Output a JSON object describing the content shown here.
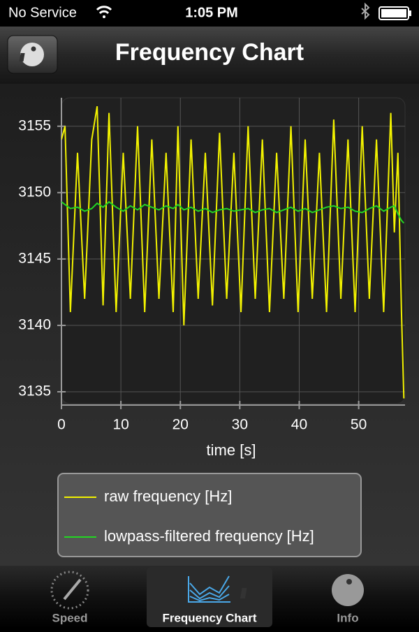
{
  "status": {
    "carrier": "No Service",
    "time": "1:05 PM"
  },
  "nav": {
    "title": "Frequency Chart"
  },
  "tabs": [
    "Speed",
    "Frequency Chart",
    "Info"
  ],
  "chart_data": {
    "type": "line",
    "xlabel": "time [s]",
    "x": [
      0,
      0.6,
      1.5,
      2.7,
      3.9,
      5.1,
      6.0,
      7.0,
      8.0,
      9.2,
      10.4,
      11.6,
      12.8,
      14.0,
      15.2,
      16.4,
      17.6,
      18.8,
      19.6,
      20.6,
      21.8,
      23.0,
      24.2,
      25.4,
      26.6,
      27.8,
      29.0,
      30.2,
      31.4,
      32.6,
      33.8,
      35.0,
      36.2,
      37.4,
      38.6,
      39.8,
      41.0,
      42.2,
      43.4,
      44.6,
      45.8,
      47.0,
      48.2,
      49.4,
      50.6,
      51.8,
      53.0,
      54.2,
      55.4,
      56.0,
      56.6,
      57.2,
      57.6
    ],
    "series": [
      {
        "name": "raw frequency [Hz]",
        "color": "#f2f200",
        "values": [
          3154,
          3155,
          3141,
          3153,
          3142,
          3154,
          3156.5,
          3141.5,
          3156,
          3141,
          3153,
          3142,
          3155,
          3141,
          3154,
          3142,
          3153,
          3141,
          3155,
          3140,
          3154,
          3142,
          3153,
          3141.5,
          3154.5,
          3142,
          3153,
          3141,
          3155,
          3142,
          3154,
          3141,
          3153,
          3142,
          3155,
          3141,
          3154,
          3142,
          3153,
          3141,
          3155.5,
          3142,
          3154,
          3141,
          3155,
          3142,
          3154,
          3141,
          3156,
          3147,
          3153,
          3141,
          3134.5
        ]
      },
      {
        "name": "lowpass-filtered frequency [Hz]",
        "color": "#22d622",
        "values": [
          3149.3,
          3149.1,
          3148.8,
          3148.9,
          3148.6,
          3148.8,
          3149.2,
          3148.9,
          3149.3,
          3148.9,
          3148.6,
          3149.0,
          3148.7,
          3149.1,
          3148.9,
          3148.7,
          3149.0,
          3148.8,
          3149.1,
          3148.7,
          3148.9,
          3148.6,
          3148.8,
          3148.5,
          3148.7,
          3148.8,
          3148.6,
          3148.7,
          3148.8,
          3148.5,
          3148.7,
          3148.8,
          3148.5,
          3148.7,
          3148.9,
          3148.6,
          3148.8,
          3148.5,
          3148.7,
          3148.9,
          3149.0,
          3148.8,
          3148.9,
          3148.6,
          3148.5,
          3148.8,
          3149.0,
          3148.6,
          3148.9,
          3149.0,
          3148.4,
          3147.9,
          3147.7
        ]
      }
    ],
    "xlim": [
      0,
      57.8
    ],
    "ylim": [
      3134,
      3157.3
    ],
    "xticks": [
      0,
      10,
      20,
      30,
      40,
      50
    ],
    "yticks": [
      3135,
      3140,
      3145,
      3150,
      3155
    ],
    "grid": true
  }
}
